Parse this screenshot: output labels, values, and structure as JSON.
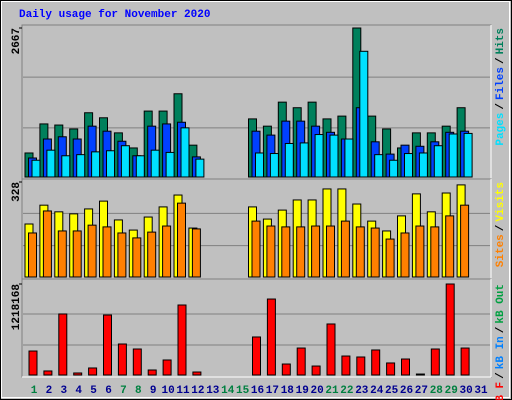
{
  "chart_data": [
    {
      "type": "bar",
      "title": "Daily usage for November 2020",
      "ylim": [
        0,
        2667
      ],
      "yticks": [
        2667
      ],
      "legend_separator": "/",
      "series": [
        {
          "name": "Pages",
          "color": "#00e0ff",
          "values": [
            300,
            480,
            380,
            400,
            450,
            470,
            560,
            380,
            480,
            440,
            880,
            320,
            0,
            0,
            0,
            430,
            420,
            600,
            610,
            760,
            750,
            680,
            2250,
            400,
            300,
            420,
            430,
            560,
            770,
            780,
            null
          ]
        },
        {
          "name": "Files",
          "color": "#0040ff",
          "values": [
            340,
            680,
            720,
            680,
            910,
            820,
            640,
            380,
            910,
            950,
            980,
            360,
            0,
            0,
            0,
            820,
            750,
            1000,
            1000,
            910,
            800,
            680,
            1240,
            630,
            410,
            570,
            550,
            630,
            800,
            820,
            null
          ]
        },
        {
          "name": "Hits",
          "color": "#00805c",
          "values": [
            430,
            950,
            930,
            860,
            1150,
            1060,
            790,
            520,
            1180,
            1180,
            1490,
            570,
            0,
            0,
            0,
            1040,
            910,
            1340,
            1240,
            1340,
            1040,
            1090,
            2667,
            1090,
            860,
            520,
            790,
            790,
            910,
            1240,
            null
          ]
        }
      ]
    },
    {
      "type": "bar",
      "ylim": [
        0,
        328
      ],
      "yticks": [
        328
      ],
      "legend_separator": "/",
      "series": [
        {
          "name": "Sites",
          "color": "#ff8000",
          "values": [
            152,
            228,
            159,
            159,
            179,
            173,
            152,
            135,
            155,
            176,
            255,
            166,
            0,
            0,
            0,
            193,
            176,
            173,
            173,
            176,
            176,
            193,
            173,
            169,
            131,
            152,
            176,
            173,
            211,
            248,
            null
          ]
        },
        {
          "name": "Visits",
          "color": "#ffff00",
          "values": [
            183,
            248,
            225,
            218,
            235,
            262,
            197,
            162,
            207,
            242,
            283,
            169,
            0,
            0,
            0,
            242,
            200,
            231,
            266,
            266,
            304,
            304,
            252,
            193,
            159,
            211,
            287,
            225,
            290,
            318,
            null
          ]
        }
      ]
    },
    {
      "type": "bar",
      "ylim": [
        0,
        1218168
      ],
      "yticks": [
        1218168
      ],
      "legend_separator": "/",
      "series": [
        {
          "name": "kB F",
          "color": "#ff0000",
          "values": [
            321000,
            54000,
            817000,
            27000,
            94000,
            803000,
            415000,
            348000,
            67000,
            201000,
            937000,
            40000,
            0,
            0,
            0,
            509000,
            1017000,
            147000,
            361000,
            120000,
            683000,
            254000,
            241000,
            335000,
            161000,
            214000,
            13000,
            348000,
            1218168,
            361000,
            null
          ]
        }
      ],
      "legend_extra": [
        {
          "name": "kB In",
          "color": "#0080ff"
        },
        {
          "name": "kB Out",
          "color": "#00a040"
        }
      ],
      "categories": [
        "1",
        "2",
        "3",
        "4",
        "5",
        "6",
        "7",
        "8",
        "9",
        "10",
        "11",
        "12",
        "13",
        "14",
        "15",
        "16",
        "17",
        "18",
        "19",
        "20",
        "21",
        "22",
        "23",
        "24",
        "25",
        "26",
        "27",
        "28",
        "29",
        "30",
        "31"
      ],
      "category_colors": [
        "#008040",
        "#000090",
        "#000090",
        "#000090",
        "#000090",
        "#000090",
        "#008040",
        "#008040",
        "#000090",
        "#000090",
        "#000090",
        "#000090",
        "#000090",
        "#008040",
        "#008040",
        "#000090",
        "#000090",
        "#000090",
        "#000090",
        "#000090",
        "#008040",
        "#008040",
        "#000090",
        "#000090",
        "#000090",
        "#000090",
        "#000090",
        "#008040",
        "#008040",
        "#000090",
        "#000090"
      ]
    }
  ]
}
